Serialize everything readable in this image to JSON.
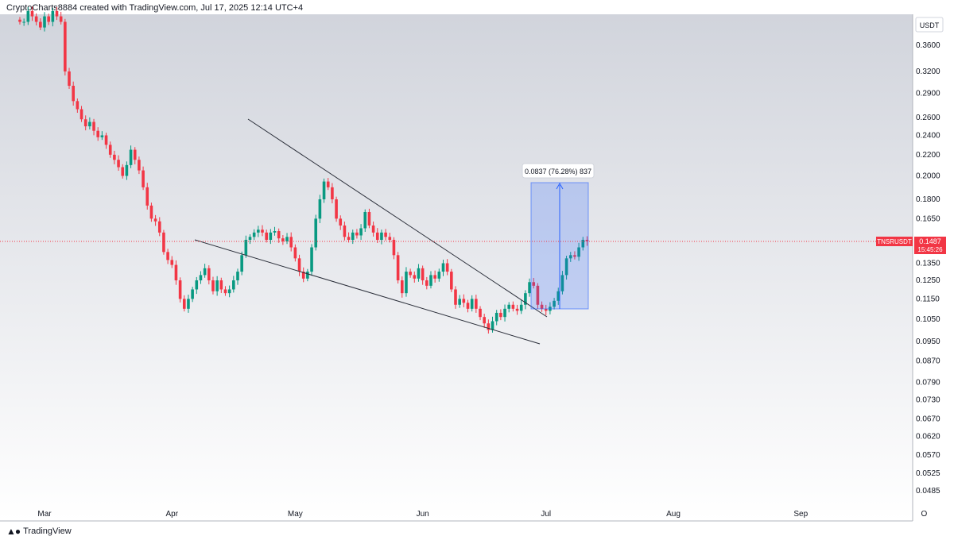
{
  "header": {
    "text": "CryptoCharts8884 created with TradingView.com, Jul 17, 2025 12:14 UTC+4"
  },
  "footer": {
    "brand": "TradingView",
    "logo_icon": "tradingview-logo-icon"
  },
  "currency_badge": "USDT",
  "last_price": {
    "symbol": "TNSRUSDT",
    "value": "0.1487",
    "countdown": "15:45:26",
    "color": "#f23645"
  },
  "measure": {
    "label": "0.0837 (76.28%) 837",
    "from": 0.11,
    "to": 0.1937
  },
  "colors": {
    "up": "#089981",
    "down": "#f23645",
    "bg_top": "#d1d4dc",
    "bg_bottom": "#ffffff"
  },
  "chart_data": {
    "type": "candlestick",
    "symbol": "TNSRUSDT",
    "scale": "log",
    "y_ticks": [
      "0.3600",
      "0.3200",
      "0.2900",
      "0.2600",
      "0.2400",
      "0.2200",
      "0.2000",
      "0.1800",
      "0.1650",
      "0.1500",
      "0.1350",
      "0.1250",
      "0.1150",
      "0.1050",
      "0.0950",
      "0.0870",
      "0.0790",
      "0.0730",
      "0.0670",
      "0.0620",
      "0.0570",
      "0.0525",
      "0.0485"
    ],
    "x_ticks": [
      {
        "label": "Mar",
        "day": 0
      },
      {
        "label": "Apr",
        "day": 31
      },
      {
        "label": "May",
        "day": 61
      },
      {
        "label": "Jun",
        "day": 92
      },
      {
        "label": "Jul",
        "day": 122
      },
      {
        "label": "Aug",
        "day": 153
      },
      {
        "label": "Sep",
        "day": 184
      },
      {
        "label": "O",
        "day": 214
      }
    ],
    "first_candle_day": -6,
    "candles_close": [
      0.4,
      0.4,
      0.42,
      0.41,
      0.4,
      0.39,
      0.41,
      0.4,
      0.42,
      0.41,
      0.4,
      0.32,
      0.3,
      0.28,
      0.27,
      0.258,
      0.25,
      0.255,
      0.245,
      0.238,
      0.24,
      0.23,
      0.22,
      0.215,
      0.208,
      0.2,
      0.21,
      0.225,
      0.215,
      0.205,
      0.19,
      0.175,
      0.165,
      0.163,
      0.155,
      0.142,
      0.137,
      0.134,
      0.125,
      0.115,
      0.11,
      0.115,
      0.12,
      0.125,
      0.128,
      0.132,
      0.125,
      0.119,
      0.125,
      0.12,
      0.118,
      0.12,
      0.125,
      0.13,
      0.14,
      0.15,
      0.152,
      0.155,
      0.157,
      0.155,
      0.15,
      0.155,
      0.156,
      0.151,
      0.149,
      0.152,
      0.145,
      0.138,
      0.13,
      0.126,
      0.13,
      0.145,
      0.165,
      0.18,
      0.195,
      0.19,
      0.18,
      0.165,
      0.16,
      0.152,
      0.15,
      0.155,
      0.153,
      0.158,
      0.17,
      0.16,
      0.155,
      0.15,
      0.155,
      0.152,
      0.15,
      0.14,
      0.125,
      0.118,
      0.13,
      0.128,
      0.126,
      0.132,
      0.125,
      0.122,
      0.128,
      0.126,
      0.13,
      0.135,
      0.13,
      0.12,
      0.112,
      0.115,
      0.113,
      0.11,
      0.115,
      0.11,
      0.106,
      0.103,
      0.1,
      0.104,
      0.108,
      0.106,
      0.11,
      0.112,
      0.11,
      0.109,
      0.112,
      0.118,
      0.124,
      0.122,
      0.112,
      0.11,
      0.109,
      0.111,
      0.114,
      0.119,
      0.128,
      0.138,
      0.14,
      0.139,
      0.145,
      0.15,
      0.149
    ]
  }
}
